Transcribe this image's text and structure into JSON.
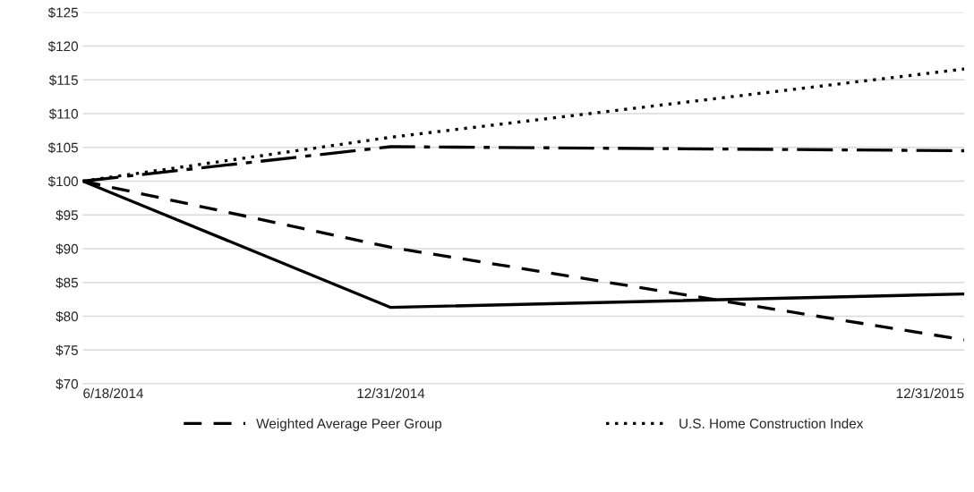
{
  "chart_data": {
    "type": "line",
    "x": [
      "2014-06-18",
      "2014-12-31",
      "2015-12-31"
    ],
    "series": [
      {
        "color": "#000000",
        "line_style": "solid",
        "values": [
          100,
          81.3,
          83.3
        ]
      },
      {
        "name": "Weighted Average Peer Group",
        "color": "#000000",
        "line_style": "dashed",
        "values": [
          100,
          90.2,
          76.5
        ]
      },
      {
        "color": "#000000",
        "line_style": "dashdot",
        "values": [
          100,
          105.1,
          104.5
        ]
      },
      {
        "name": "U.S. Home Construction Index",
        "color": "#000000",
        "line_style": "dotted",
        "values": [
          100,
          106.5,
          116.6
        ]
      }
    ],
    "xlim": [
      "2014-06-18",
      "2015-12-31"
    ],
    "xticks": [
      {
        "value": "2014-06-18",
        "label": "6/18/2014"
      },
      {
        "value": "2014-12-31",
        "label": "12/31/2014"
      },
      {
        "value": "2015-12-31",
        "label": "12/31/2015"
      }
    ],
    "ylim": [
      70,
      125
    ],
    "yticks": [
      {
        "value": 70,
        "label": "$70"
      },
      {
        "value": 75,
        "label": "$75"
      },
      {
        "value": 80,
        "label": "$80"
      },
      {
        "value": 85,
        "label": "$85"
      },
      {
        "value": 90,
        "label": "$90"
      },
      {
        "value": 95,
        "label": "$95"
      },
      {
        "value": 100,
        "label": "$100"
      },
      {
        "value": 105,
        "label": "$105"
      },
      {
        "value": 110,
        "label": "$110"
      },
      {
        "value": 115,
        "label": "$115"
      },
      {
        "value": 120,
        "label": "$120"
      },
      {
        "value": 125,
        "label": "$125"
      }
    ],
    "grid": "y",
    "legend": "bottom"
  }
}
